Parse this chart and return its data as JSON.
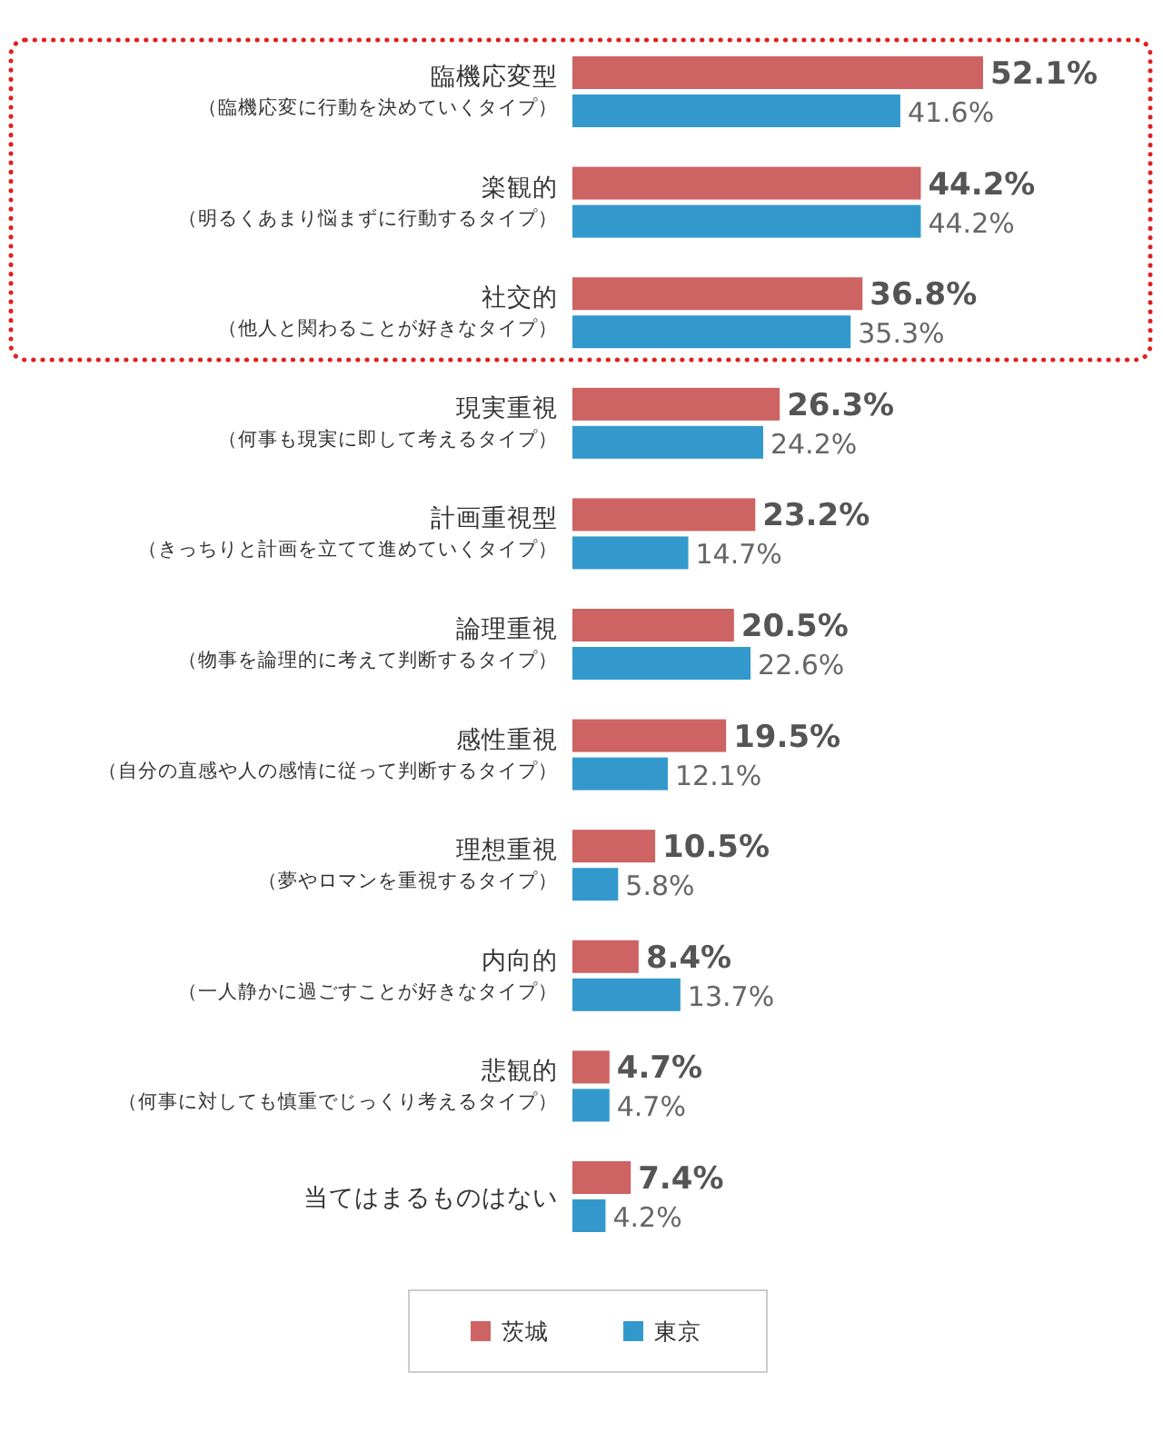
{
  "chart_data": {
    "type": "bar",
    "orientation": "horizontal",
    "legend": "bottom",
    "categories": [
      "臨機応変型（臨機応変に行動を決めていくタイプ）",
      "楽観的（明るくあまり悩まずに行動するタイプ）",
      "社交的（他人と関わることが好きなタイプ）",
      "現実重視（何事も現実に即して考えるタイプ）",
      "計画重視型（きっちりと計画を立てて進めていくタイプ）",
      "論理重視（物事を論理的に考えて判断するタイプ）",
      "感性重視（自分の直感や人の感情に従って判断するタイプ）",
      "理想重視（夢やロマンを重視するタイプ）",
      "内向的（一人静かに過ごすことが好きなタイプ）",
      "悲観的（何事に対しても慎重でじっくり考えるタイプ）",
      "当てはまるものはない"
    ],
    "series": [
      {
        "name": "茨城",
        "color": "#cd6363",
        "values": [
          52.1,
          44.2,
          36.8,
          26.3,
          23.2,
          20.5,
          19.5,
          10.5,
          8.4,
          4.7,
          7.4
        ],
        "value_labels": [
          "52.1%",
          "44.2%",
          "36.8%",
          "26.3%",
          "23.2%",
          "20.5%",
          "19.5%",
          "10.5%",
          "8.4%",
          "4.7%",
          "7.4%"
        ]
      },
      {
        "name": "東京",
        "color": "#3399cc",
        "values": [
          41.6,
          44.2,
          35.3,
          24.2,
          14.7,
          22.6,
          12.1,
          5.8,
          13.7,
          4.7,
          4.2
        ],
        "value_labels": [
          "41.6%",
          "44.2%",
          "35.3%",
          "24.2%",
          "14.7%",
          "22.6%",
          "12.1%",
          "5.8%",
          "13.7%",
          "4.7%",
          "4.2%"
        ]
      }
    ]
  }
}
